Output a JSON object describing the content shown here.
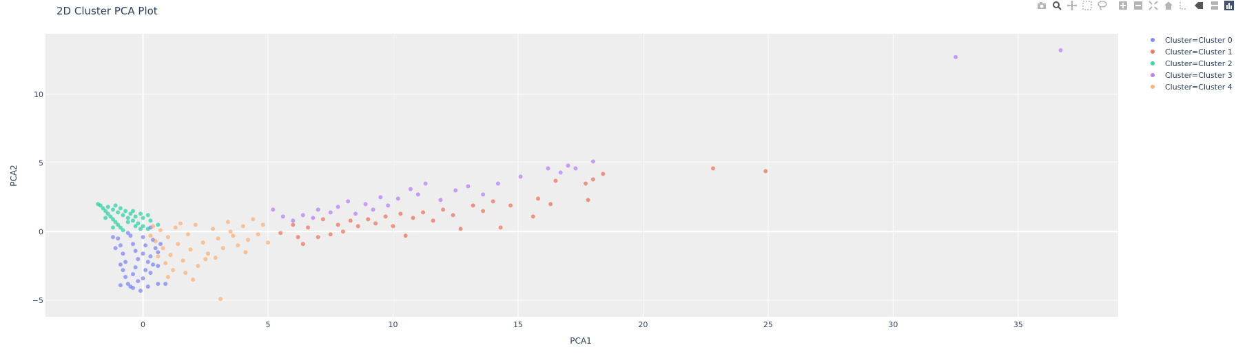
{
  "chart_data": {
    "type": "scatter",
    "title": "2D Cluster PCA Plot",
    "xlabel": "PCA1",
    "ylabel": "PCA2",
    "xlim": [
      -3.9,
      39
    ],
    "ylim": [
      -6.2,
      14.4
    ],
    "x_ticks": [
      0,
      5,
      10,
      15,
      20,
      25,
      30,
      35
    ],
    "y_ticks": [
      -5,
      0,
      5,
      10
    ],
    "grid": true,
    "legend_position": "top-right",
    "series": [
      {
        "name": "Cluster=Cluster 0",
        "color": "#636efa",
        "points": [
          [
            -1.0,
            -0.5
          ],
          [
            -0.9,
            -1.0
          ],
          [
            -0.8,
            -1.6
          ],
          [
            -0.7,
            -2.2
          ],
          [
            -0.8,
            -2.8
          ],
          [
            -0.7,
            -3.3
          ],
          [
            -0.6,
            -3.8
          ],
          [
            -0.9,
            -3.9
          ],
          [
            -0.5,
            -0.3
          ],
          [
            -0.4,
            -0.9
          ],
          [
            -0.3,
            -1.4
          ],
          [
            -0.2,
            -2.0
          ],
          [
            -0.3,
            -2.6
          ],
          [
            -0.4,
            -3.1
          ],
          [
            -0.2,
            -3.6
          ],
          [
            -0.5,
            -4.0
          ],
          [
            0.0,
            -0.4
          ],
          [
            0.1,
            -1.0
          ],
          [
            0.0,
            -1.6
          ],
          [
            0.2,
            -2.2
          ],
          [
            0.1,
            -2.8
          ],
          [
            0.0,
            -3.4
          ],
          [
            -0.1,
            -4.3
          ],
          [
            0.4,
            -0.6
          ],
          [
            0.5,
            -1.2
          ],
          [
            0.3,
            -1.8
          ],
          [
            0.4,
            -2.4
          ],
          [
            0.3,
            -3.0
          ],
          [
            0.6,
            -3.8
          ],
          [
            0.7,
            -0.9
          ],
          [
            0.6,
            -1.5
          ],
          [
            0.6,
            -2.5
          ],
          [
            -1.1,
            -1.2
          ],
          [
            -1.2,
            -0.4
          ],
          [
            -0.6,
            -0.1
          ],
          [
            0.3,
            0.3
          ],
          [
            -0.9,
            -2.4
          ],
          [
            -0.4,
            -4.1
          ],
          [
            0.2,
            -4.0
          ],
          [
            0.9,
            -3.8
          ]
        ]
      },
      {
        "name": "Cluster=Cluster 1",
        "color": "#ef553b",
        "points": [
          [
            5.5,
            -0.1
          ],
          [
            6.0,
            0.5
          ],
          [
            6.2,
            -0.4
          ],
          [
            6.4,
            -0.9
          ],
          [
            6.6,
            0.3
          ],
          [
            7.0,
            -0.4
          ],
          [
            7.2,
            0.9
          ],
          [
            7.5,
            -0.2
          ],
          [
            7.8,
            0.5
          ],
          [
            8.0,
            0.0
          ],
          [
            8.3,
            0.8
          ],
          [
            8.6,
            0.4
          ],
          [
            9.0,
            0.9
          ],
          [
            9.3,
            0.6
          ],
          [
            9.7,
            1.1
          ],
          [
            10.0,
            0.4
          ],
          [
            10.3,
            1.3
          ],
          [
            10.5,
            -0.3
          ],
          [
            10.8,
            1.0
          ],
          [
            11.2,
            1.4
          ],
          [
            11.6,
            0.8
          ],
          [
            12.0,
            1.6
          ],
          [
            12.4,
            1.2
          ],
          [
            12.7,
            0.2
          ],
          [
            13.2,
            1.9
          ],
          [
            13.6,
            1.5
          ],
          [
            14.0,
            2.2
          ],
          [
            14.3,
            0.3
          ],
          [
            14.7,
            1.9
          ],
          [
            15.6,
            1.1
          ],
          [
            15.8,
            2.4
          ],
          [
            16.3,
            2.0
          ],
          [
            16.5,
            3.7
          ],
          [
            17.7,
            3.5
          ],
          [
            17.8,
            2.3
          ],
          [
            18.0,
            3.8
          ],
          [
            18.4,
            4.2
          ],
          [
            22.8,
            4.6
          ],
          [
            24.9,
            4.4
          ]
        ]
      },
      {
        "name": "Cluster=Cluster 2",
        "color": "#00cc96",
        "points": [
          [
            -1.8,
            2.0
          ],
          [
            -1.7,
            1.9
          ],
          [
            -1.6,
            1.7
          ],
          [
            -1.5,
            1.5
          ],
          [
            -1.4,
            1.3
          ],
          [
            -1.3,
            1.1
          ],
          [
            -1.2,
            0.9
          ],
          [
            -1.1,
            0.7
          ],
          [
            -1.0,
            0.5
          ],
          [
            -0.9,
            0.3
          ],
          [
            -0.8,
            0.1
          ],
          [
            -1.4,
            1.8
          ],
          [
            -1.2,
            1.6
          ],
          [
            -1.0,
            1.4
          ],
          [
            -0.8,
            1.2
          ],
          [
            -0.6,
            1.0
          ],
          [
            -0.4,
            0.8
          ],
          [
            -0.2,
            0.6
          ],
          [
            0.0,
            0.4
          ],
          [
            0.2,
            0.2
          ],
          [
            -1.1,
            1.9
          ],
          [
            -0.9,
            1.7
          ],
          [
            -0.7,
            1.5
          ],
          [
            -0.5,
            1.3
          ],
          [
            -0.3,
            1.1
          ],
          [
            0.0,
            1.0
          ],
          [
            0.3,
            0.8
          ],
          [
            0.6,
            0.5
          ],
          [
            -0.4,
            1.5
          ],
          [
            -0.1,
            1.3
          ],
          [
            0.2,
            1.2
          ],
          [
            -0.6,
            0.7
          ],
          [
            -0.3,
            0.4
          ],
          [
            -0.1,
            0.2
          ],
          [
            -1.5,
            1.0
          ],
          [
            -1.2,
            0.3
          ]
        ]
      },
      {
        "name": "Cluster=Cluster 3",
        "color": "#ab63fa",
        "points": [
          [
            5.2,
            1.6
          ],
          [
            5.6,
            1.1
          ],
          [
            6.0,
            0.8
          ],
          [
            6.4,
            1.2
          ],
          [
            6.8,
            1.0
          ],
          [
            7.0,
            1.6
          ],
          [
            7.5,
            1.4
          ],
          [
            7.8,
            1.8
          ],
          [
            8.2,
            2.2
          ],
          [
            8.5,
            1.3
          ],
          [
            8.9,
            2.0
          ],
          [
            9.2,
            1.6
          ],
          [
            9.5,
            2.5
          ],
          [
            9.8,
            1.9
          ],
          [
            10.2,
            2.4
          ],
          [
            10.7,
            3.1
          ],
          [
            11.0,
            2.7
          ],
          [
            11.3,
            3.5
          ],
          [
            11.9,
            2.3
          ],
          [
            12.5,
            3.0
          ],
          [
            13.0,
            3.3
          ],
          [
            13.6,
            2.7
          ],
          [
            14.2,
            3.5
          ],
          [
            15.1,
            4.0
          ],
          [
            16.2,
            4.6
          ],
          [
            16.7,
            4.3
          ],
          [
            17.0,
            4.8
          ],
          [
            17.3,
            4.6
          ],
          [
            18.0,
            5.1
          ],
          [
            32.5,
            12.7
          ],
          [
            36.7,
            13.2
          ]
        ]
      },
      {
        "name": "Cluster=Cluster 4",
        "color": "#ffa15a",
        "points": [
          [
            0.3,
            -0.3
          ],
          [
            0.5,
            -0.7
          ],
          [
            0.7,
            0.1
          ],
          [
            0.8,
            -1.2
          ],
          [
            1.0,
            -0.4
          ],
          [
            1.1,
            -1.7
          ],
          [
            1.3,
            0.3
          ],
          [
            1.4,
            -0.9
          ],
          [
            1.6,
            -2.1
          ],
          [
            1.8,
            -0.2
          ],
          [
            1.9,
            -1.3
          ],
          [
            2.1,
            0.5
          ],
          [
            2.2,
            -2.5
          ],
          [
            2.4,
            -0.8
          ],
          [
            2.6,
            -1.6
          ],
          [
            2.8,
            0.2
          ],
          [
            3.0,
            -0.5
          ],
          [
            3.1,
            -4.9
          ],
          [
            3.2,
            -1.2
          ],
          [
            3.4,
            0.7
          ],
          [
            3.6,
            -0.3
          ],
          [
            3.8,
            -1.0
          ],
          [
            4.0,
            0.4
          ],
          [
            4.2,
            -0.6
          ],
          [
            4.4,
            0.9
          ],
          [
            4.6,
            -0.2
          ],
          [
            4.8,
            0.5
          ],
          [
            5.0,
            -0.8
          ],
          [
            1.2,
            -2.8
          ],
          [
            2.0,
            -3.5
          ],
          [
            0.9,
            -2.3
          ],
          [
            2.5,
            -2.0
          ],
          [
            3.5,
            0.0
          ],
          [
            1.5,
            0.6
          ],
          [
            0.6,
            -1.8
          ],
          [
            1.7,
            -3.0
          ],
          [
            2.9,
            -1.9
          ],
          [
            4.1,
            -1.5
          ],
          [
            0.4,
            0.4
          ],
          [
            1.0,
            -3.3
          ]
        ]
      }
    ]
  },
  "modebar": {
    "icons": [
      "camera-icon",
      "zoom-icon",
      "pan-icon",
      "box-select-icon",
      "lasso-icon",
      "zoom-in-icon",
      "zoom-out-icon",
      "autoscale-icon",
      "reset-axes-icon",
      "spike-lines-icon",
      "hover-closest-icon",
      "hover-compare-icon",
      "plotly-logo-icon"
    ],
    "color": "#b4b4b4"
  }
}
